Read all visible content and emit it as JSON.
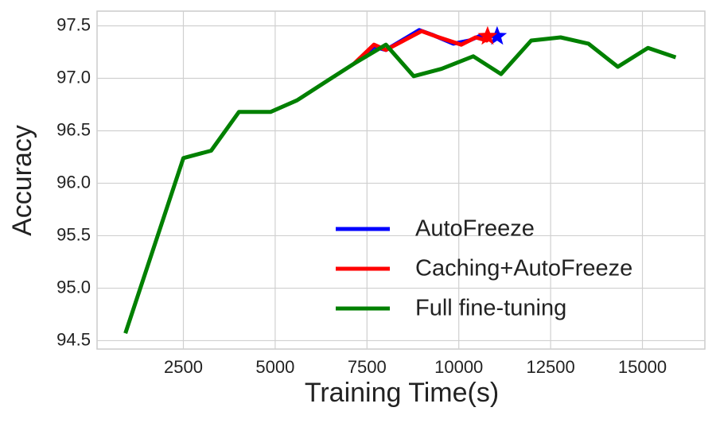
{
  "chart_data": {
    "type": "line",
    "xlabel": "Training Time(s)",
    "ylabel": "Accuracy",
    "xlim": [
      150,
      16700
    ],
    "ylim": [
      94.42,
      97.64
    ],
    "xticks": [
      2500,
      5000,
      7500,
      10000,
      12500,
      15000
    ],
    "yticks": [
      {
        "value": 94.5,
        "label": "94.5"
      },
      {
        "value": 95,
        "label": "95.0"
      },
      {
        "value": 95.5,
        "label": "95.5"
      },
      {
        "value": 96,
        "label": "96.0"
      },
      {
        "value": 96.5,
        "label": "96.5"
      },
      {
        "value": 97,
        "label": "97.0"
      },
      {
        "value": 97.5,
        "label": "97.5"
      }
    ],
    "grid": true,
    "legend": "lower right",
    "end_marker": "star",
    "series": [
      {
        "name": "AutoFreeze",
        "color": "#0000ff",
        "x": [
          7150,
          7690,
          8015,
          8924,
          9313,
          9853,
          10286,
          10610,
          11043
        ],
        "values": [
          97.14,
          97.3,
          97.27,
          97.46,
          97.41,
          97.33,
          97.36,
          97.41,
          97.4
        ]
      },
      {
        "name": "Caching+AutoFreeze",
        "color": "#ff0000",
        "x": [
          7150,
          7690,
          8015,
          8988,
          9378,
          10070,
          10460,
          10762,
          10783
        ],
        "values": [
          97.14,
          97.32,
          97.27,
          97.45,
          97.4,
          97.32,
          97.39,
          97.36,
          97.4
        ]
      },
      {
        "name": "Full fine-tuning",
        "color": "#008000",
        "x": [
          921,
          2500,
          3257,
          4014,
          4879,
          5593,
          6393,
          7150,
          8015,
          8772,
          9529,
          10394,
          11150,
          11972,
          12773,
          13529,
          14330,
          15152,
          15908
        ],
        "values": [
          94.57,
          96.24,
          96.31,
          96.68,
          96.68,
          96.79,
          96.97,
          97.14,
          97.32,
          97.02,
          97.09,
          97.21,
          97.04,
          97.36,
          97.39,
          97.33,
          97.11,
          97.29,
          97.2
        ]
      }
    ]
  }
}
